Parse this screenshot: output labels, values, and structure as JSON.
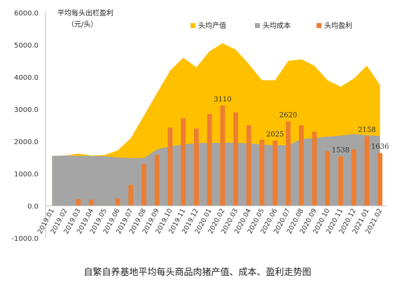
{
  "chart_data": {
    "type": "area",
    "ylabel": "平均每头出栏盈利",
    "yunit": "（元/头）",
    "ylim": [
      -1000,
      6000
    ],
    "yticks": [
      -1000,
      0,
      1000,
      2000,
      3000,
      4000,
      5000,
      6000
    ],
    "ytick_labels": [
      "-1000.0",
      "0.0",
      "1000.0",
      "2000.0",
      "3000.0",
      "4000.0",
      "5000.0",
      "6000.0"
    ],
    "legend_position": "top-right",
    "grid": false,
    "categories": [
      "2019.01",
      "2019.02",
      "2019.03",
      "2019.04",
      "2019.05",
      "2019.06",
      "2019.07",
      "2019.08",
      "2019.09",
      "2019.10",
      "2019.11",
      "2019.12",
      "2020.01",
      "2020.02",
      "2020.03",
      "2020.04",
      "2020.05",
      "2020.06",
      "2020.07",
      "2020.08",
      "2020.09",
      "2020.10",
      "2020.11",
      "2020.12",
      "2021.01",
      "2021.02"
    ],
    "series": [
      {
        "name": "头均产值",
        "kind": "area",
        "color": "#FFC000",
        "values": [
          1550,
          1560,
          1620,
          1560,
          1580,
          1720,
          2100,
          2800,
          3500,
          4200,
          4600,
          4300,
          4800,
          5050,
          4850,
          4400,
          3900,
          3900,
          4500,
          4550,
          4350,
          3900,
          3700,
          3950,
          4350,
          3750
        ]
      },
      {
        "name": "头均成本",
        "kind": "area",
        "color": "#A5A5A5",
        "values": [
          1550,
          1560,
          1550,
          1550,
          1540,
          1500,
          1480,
          1480,
          1750,
          1850,
          1900,
          1950,
          1950,
          1960,
          1960,
          1940,
          1900,
          1880,
          1880,
          2080,
          2100,
          2150,
          2180,
          2230,
          2190,
          2170
        ]
      },
      {
        "name": "头均盈利",
        "kind": "bar",
        "color": "#ED7D31",
        "values": [
          10,
          20,
          210,
          190,
          20,
          230,
          650,
          1300,
          1580,
          2430,
          2720,
          2400,
          2850,
          3110,
          2900,
          2500,
          2050,
          2025,
          2620,
          2500,
          2300,
          1700,
          1538,
          1750,
          2158,
          1636
        ]
      }
    ],
    "data_labels": [
      {
        "series": "头均盈利",
        "category": "2020.02",
        "text": "3110"
      },
      {
        "series": "头均盈利",
        "category": "2020.06",
        "text": "2025"
      },
      {
        "series": "头均盈利",
        "category": "2020.07",
        "text": "2620"
      },
      {
        "series": "头均盈利",
        "category": "2020.11",
        "text": "1538"
      },
      {
        "series": "头均盈利",
        "category": "2021.01",
        "text": "2158"
      },
      {
        "series": "头均盈利",
        "category": "2021.02",
        "text": "1636"
      }
    ]
  },
  "caption": "自繁自养基地平均每头商品肉猪产值、成本、盈利走势图"
}
